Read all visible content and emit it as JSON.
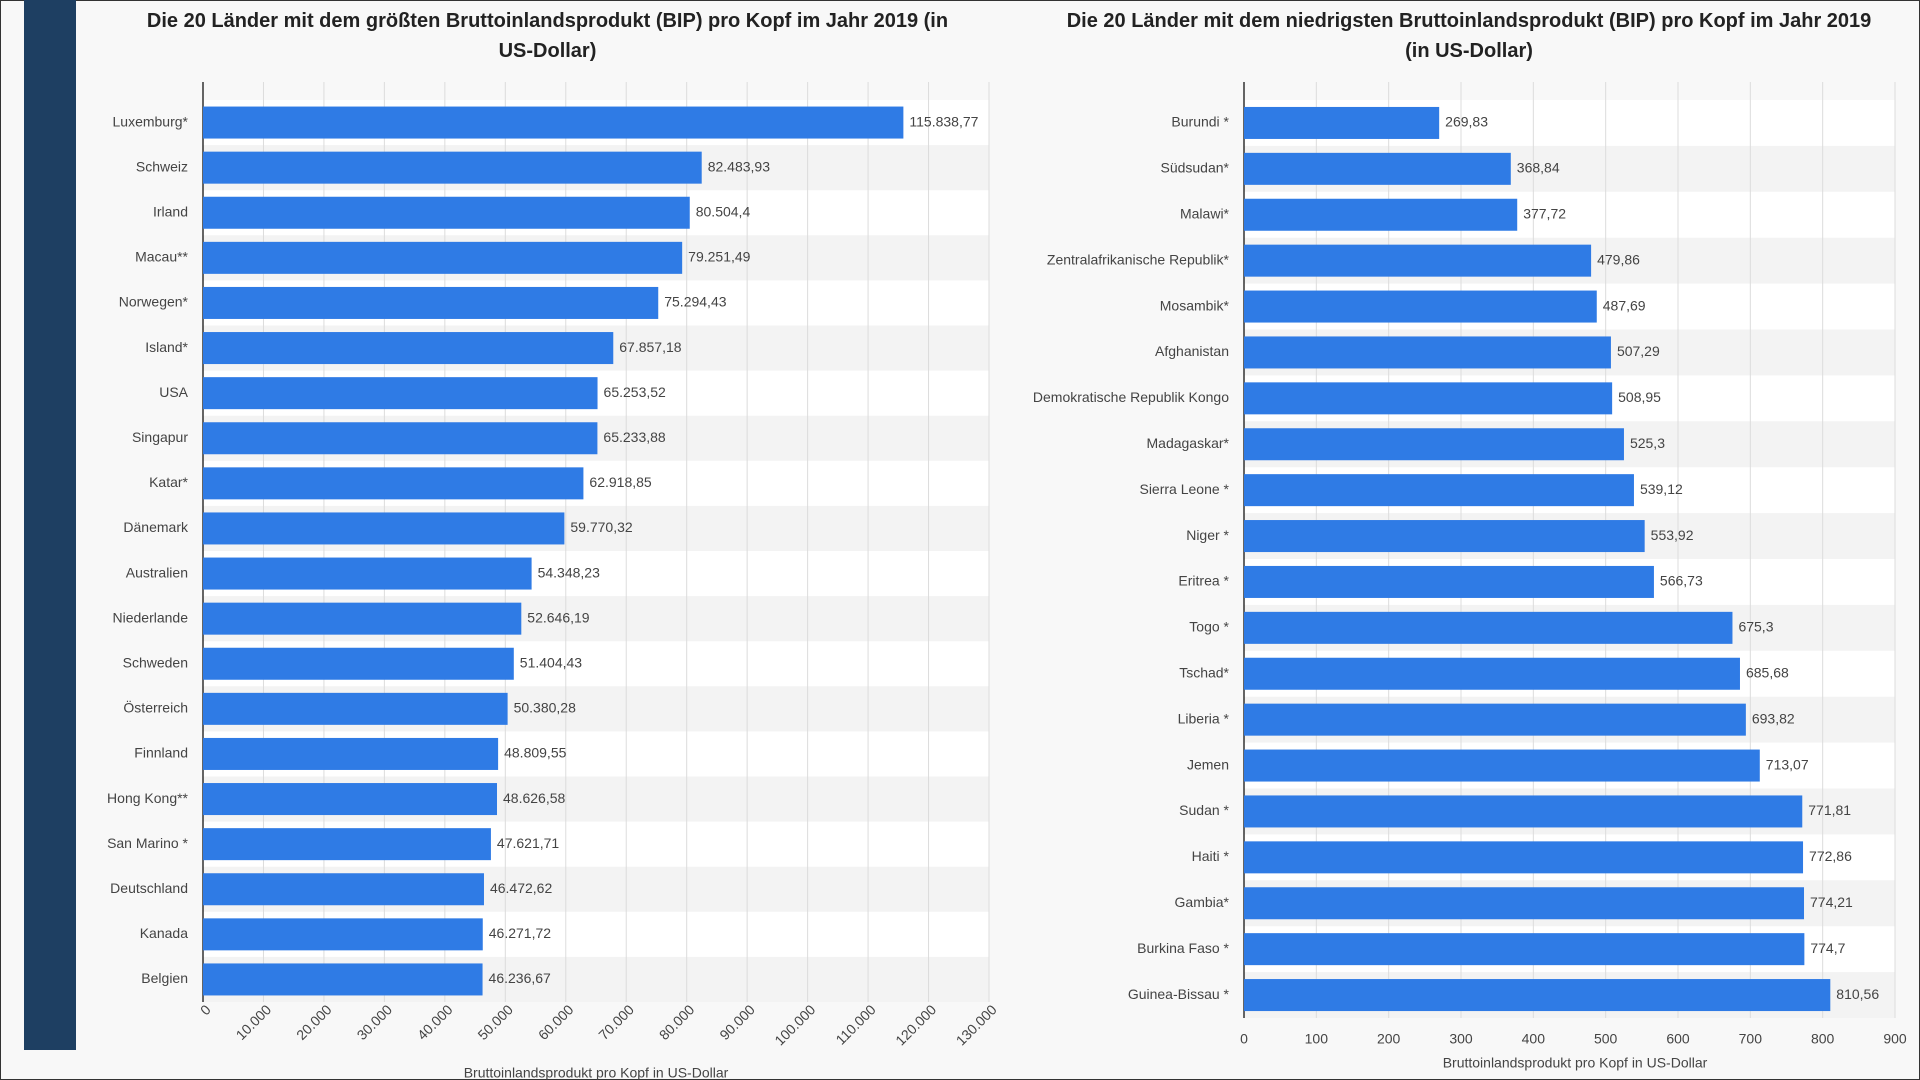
{
  "chart_data": [
    {
      "type": "bar",
      "orientation": "horizontal",
      "title": "Die 20 Länder mit dem größten Bruttoinlandsprodukt (BIP) pro Kopf im Jahr 2019 (in US-Dollar)",
      "xlabel": "Bruttoinlandsprodukt pro Kopf in US-Dollar",
      "categories": [
        "Luxemburg*",
        "Schweiz",
        "Irland",
        "Macau**",
        "Norwegen*",
        "Island*",
        "USA",
        "Singapur",
        "Katar*",
        "Dänemark",
        "Australien",
        "Niederlande",
        "Schweden",
        "Österreich",
        "Finnland",
        "Hong Kong**",
        "San Marino *",
        "Deutschland",
        "Kanada",
        "Belgien"
      ],
      "values": [
        115838.77,
        82483.93,
        80504.4,
        79251.49,
        75294.43,
        67857.18,
        65253.52,
        65233.88,
        62918.85,
        59770.32,
        54348.23,
        52646.19,
        51404.43,
        50380.28,
        48809.55,
        48626.58,
        47621.71,
        46472.62,
        46271.72,
        46236.67
      ],
      "value_labels": [
        "115.838,77",
        "82.483,93",
        "80.504,4",
        "79.251,49",
        "75.294,43",
        "67.857,18",
        "65.253,52",
        "65.233,88",
        "62.918,85",
        "59.770,32",
        "54.348,23",
        "52.646,19",
        "51.404,43",
        "50.380,28",
        "48.809,55",
        "48.626,58",
        "47.621,71",
        "46.472,62",
        "46.271,72",
        "46.236,67"
      ],
      "color": "#2f7be5",
      "xlim": [
        0,
        130000
      ],
      "xticks": [
        0,
        {
          "value": 10000,
          "label": "10.000"
        },
        {
          "value": 20000,
          "label": "20.000"
        },
        {
          "value": 30000,
          "label": "30.000"
        },
        {
          "value": 40000,
          "label": "40.000"
        },
        {
          "value": 50000,
          "label": "50.000"
        },
        {
          "value": 60000,
          "label": "60.000"
        },
        {
          "value": 70000,
          "label": "70.000"
        },
        {
          "value": 80000,
          "label": "80.000"
        },
        {
          "value": 90000,
          "label": "90.000"
        },
        {
          "value": 100000,
          "label": "100.000"
        },
        {
          "value": 110000,
          "label": "110.000"
        },
        {
          "value": 120000,
          "label": "120.000"
        },
        {
          "value": 130000,
          "label": "130.000"
        }
      ],
      "grid": true
    },
    {
      "type": "bar",
      "orientation": "horizontal",
      "title": "Die 20 Länder mit dem niedrigsten Bruttoinlandsprodukt (BIP) pro Kopf im Jahr 2019 (in US-Dollar)",
      "xlabel": "Bruttoinlandsprodukt pro Kopf in US-Dollar",
      "categories": [
        "Burundi *",
        "Südsudan*",
        "Malawi*",
        "Zentralafrikanische Republik*",
        "Mosambik*",
        "Afghanistan",
        "Demokratische Republik Kongo",
        "Madagaskar*",
        "Sierra Leone *",
        "Niger *",
        "Eritrea *",
        "Togo *",
        "Tschad*",
        "Liberia *",
        "Jemen",
        "Sudan *",
        "Haiti *",
        "Gambia*",
        "Burkina Faso *",
        "Guinea-Bissau *"
      ],
      "values": [
        269.83,
        368.84,
        377.72,
        479.86,
        487.69,
        507.29,
        508.95,
        525.3,
        539.12,
        553.92,
        566.73,
        675.3,
        685.68,
        693.82,
        713.07,
        771.81,
        772.86,
        774.21,
        774.7,
        810.56
      ],
      "value_labels": [
        "269,83",
        "368,84",
        "377,72",
        "479,86",
        "487,69",
        "507,29",
        "508,95",
        "525,3",
        "539,12",
        "553,92",
        "566,73",
        "675,3",
        "685,68",
        "693,82",
        "713,07",
        "771,81",
        "772,86",
        "774,21",
        "774,7",
        "810,56"
      ],
      "color": "#2f7be5",
      "xlim": [
        0,
        900
      ],
      "xticks": [
        0,
        100,
        200,
        300,
        400,
        500,
        600,
        700,
        800,
        900
      ],
      "grid": true
    }
  ]
}
